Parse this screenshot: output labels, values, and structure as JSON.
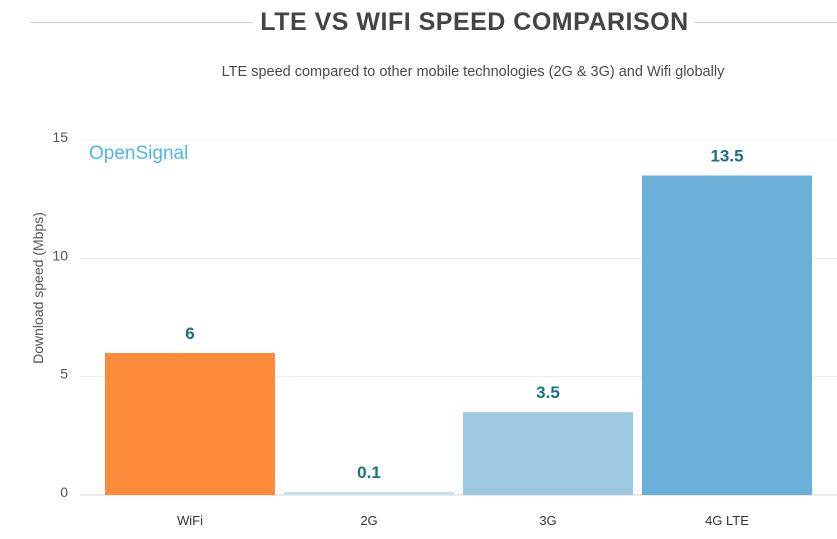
{
  "header": {
    "title": "LTE VS WIFI SPEED COMPARISON",
    "subtitle": "LTE speed compared to other mobile technologies (2G & 3G) and Wifi globally"
  },
  "watermark": "OpenSignal",
  "chart_data": {
    "type": "bar",
    "title": "LTE VS WIFI SPEED COMPARISON",
    "subtitle": "LTE speed compared to other mobile technologies (2G & 3G) and Wifi globally",
    "xlabel": "",
    "ylabel": "Download speed (Mbps)",
    "ylim": [
      0,
      15
    ],
    "yticks": [
      0,
      5,
      10,
      15
    ],
    "grid": true,
    "categories": [
      "WiFi",
      "2G",
      "3G",
      "4G LTE"
    ],
    "values": [
      6,
      0.1,
      3.5,
      13.5
    ],
    "value_labels": [
      "6",
      "0.1",
      "3.5",
      "13.5"
    ],
    "colors": [
      "#fe8b3c",
      "#c9e1f1",
      "#9ecae1",
      "#6bb0d8"
    ]
  }
}
